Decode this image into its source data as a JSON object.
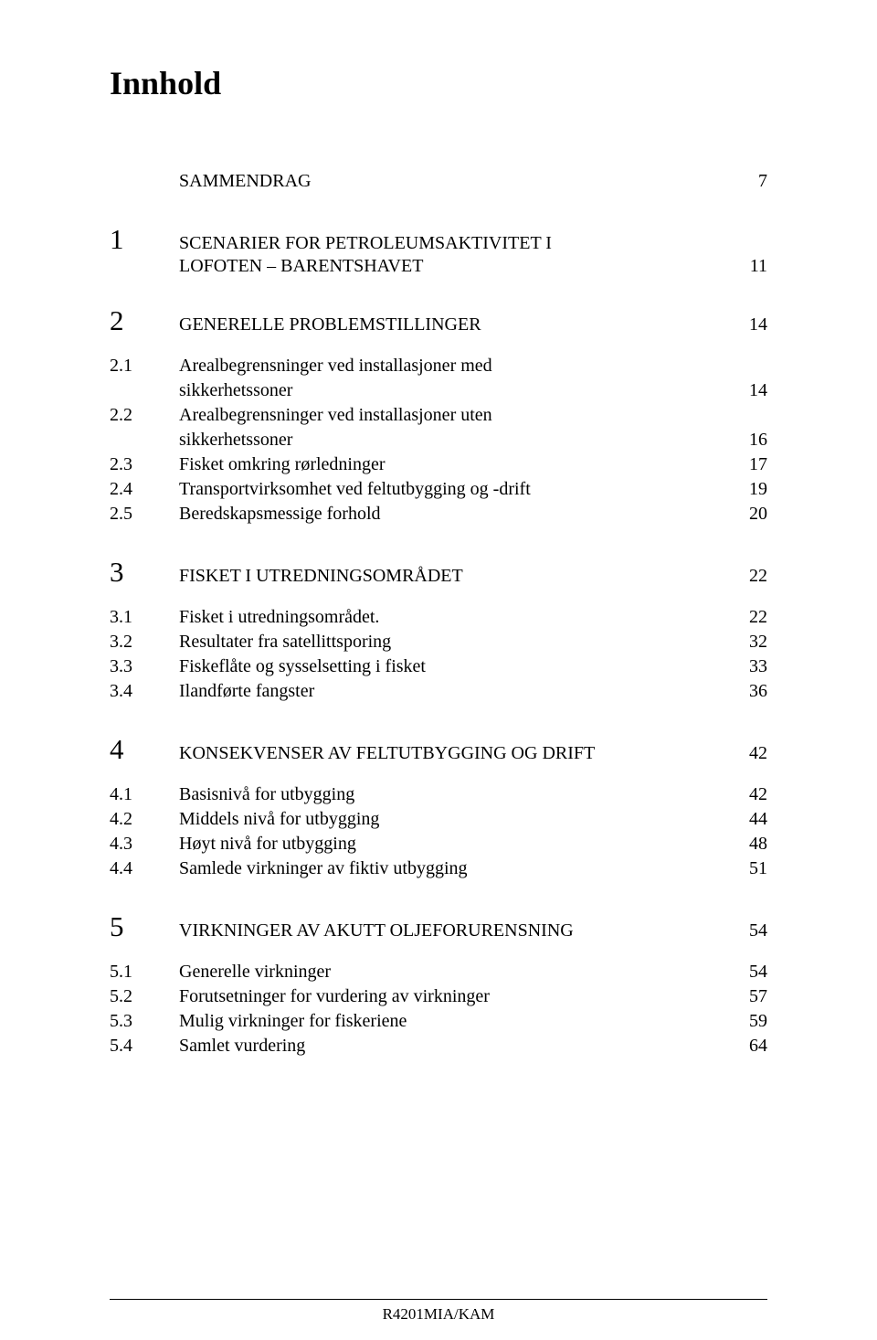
{
  "title": "Innhold",
  "top": {
    "label": "SAMMENDRAG",
    "page": "7"
  },
  "sec1": {
    "num": "1",
    "label": "SCENARIER FOR PETROLEUMSAKTIVITET I",
    "label2": "LOFOTEN – BARENTSHAVET",
    "page": "11"
  },
  "sec2": {
    "num": "2",
    "label": "GENERELLE PROBLEMSTILLINGER",
    "page": "14",
    "subs": [
      {
        "num": "2.1",
        "label": "Arealbegrensninger ved installasjoner med",
        "label2": "sikkerhetssoner",
        "page": "14"
      },
      {
        "num": "2.2",
        "label": "Arealbegrensninger ved installasjoner uten",
        "label2": "sikkerhetssoner",
        "page": "16"
      },
      {
        "num": "2.3",
        "label": "Fisket omkring rørledninger",
        "page": "17"
      },
      {
        "num": "2.4",
        "label": "Transportvirksomhet ved feltutbygging og -drift",
        "page": "19"
      },
      {
        "num": "2.5",
        "label": "Beredskapsmessige forhold",
        "page": "20"
      }
    ]
  },
  "sec3": {
    "num": "3",
    "label": "FISKET I UTREDNINGSOMRÅDET",
    "page": "22",
    "subs": [
      {
        "num": "3.1",
        "label": "Fisket i utredningsområdet.",
        "page": "22"
      },
      {
        "num": "3.2",
        "label": "Resultater fra satellittsporing",
        "page": "32"
      },
      {
        "num": "3.3",
        "label": "Fiskeflåte og sysselsetting i fisket",
        "page": "33"
      },
      {
        "num": "3.4",
        "label": "Ilandførte fangster",
        "page": "36"
      }
    ]
  },
  "sec4": {
    "num": "4",
    "label": "KONSEKVENSER AV FELTUTBYGGING OG DRIFT",
    "page": "42",
    "subs": [
      {
        "num": "4.1",
        "label": "Basisnivå for utbygging",
        "page": "42"
      },
      {
        "num": "4.2",
        "label": "Middels nivå for utbygging",
        "page": "44"
      },
      {
        "num": "4.3",
        "label": "Høyt nivå for utbygging",
        "page": "48"
      },
      {
        "num": "4.4",
        "label": "Samlede virkninger av fiktiv utbygging",
        "page": "51"
      }
    ]
  },
  "sec5": {
    "num": "5",
    "label": "VIRKNINGER AV AKUTT OLJEFORURENSNING",
    "page": "54",
    "subs": [
      {
        "num": "5.1",
        "label": "Generelle virkninger",
        "page": "54"
      },
      {
        "num": "5.2",
        "label": "Forutsetninger for vurdering av virkninger",
        "page": "57"
      },
      {
        "num": "5.3",
        "label": "Mulig virkninger for fiskeriene",
        "page": "59"
      },
      {
        "num": "5.4",
        "label": "Samlet vurdering",
        "page": "64"
      }
    ]
  },
  "footer": "R4201MIA/KAM"
}
